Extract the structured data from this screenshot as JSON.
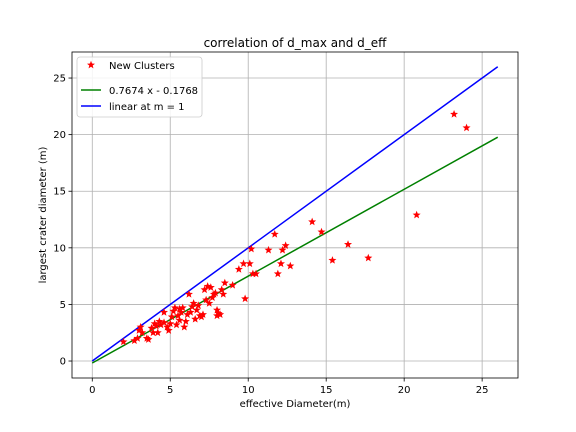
{
  "chart_data": {
    "type": "scatter",
    "title": "correlation of d_max and d_eff",
    "xlabel": "effective Diameter(m)",
    "ylabel": "largest crater diameter (m)",
    "xlim": [
      -1.3,
      27.3
    ],
    "ylim": [
      -1.5,
      27.3
    ],
    "xticks": [
      0,
      5,
      10,
      15,
      20,
      25
    ],
    "yticks": [
      0,
      5,
      10,
      15,
      20,
      25
    ],
    "grid": true,
    "legend_position": "top-left",
    "colors": {
      "scatter": "#ff0000",
      "fit": "#008000",
      "unit": "#0000ff"
    },
    "series": [
      {
        "name": "New Clusters",
        "kind": "scatter",
        "marker": "star",
        "points": [
          [
            2.0,
            1.7
          ],
          [
            2.7,
            1.8
          ],
          [
            2.9,
            2.0
          ],
          [
            3.0,
            2.7
          ],
          [
            3.1,
            3.0
          ],
          [
            3.2,
            2.5
          ],
          [
            3.5,
            2.0
          ],
          [
            3.6,
            1.9
          ],
          [
            3.8,
            2.9
          ],
          [
            3.9,
            2.5
          ],
          [
            4.0,
            3.3
          ],
          [
            4.1,
            3.1
          ],
          [
            4.2,
            2.5
          ],
          [
            4.3,
            3.5
          ],
          [
            4.4,
            3.2
          ],
          [
            4.6,
            3.4
          ],
          [
            4.6,
            4.3
          ],
          [
            4.8,
            3.0
          ],
          [
            4.9,
            2.7
          ],
          [
            5.0,
            3.3
          ],
          [
            5.1,
            3.9
          ],
          [
            5.2,
            4.4
          ],
          [
            5.3,
            4.7
          ],
          [
            5.4,
            3.2
          ],
          [
            5.5,
            4.0
          ],
          [
            5.6,
            4.6
          ],
          [
            5.6,
            3.6
          ],
          [
            5.7,
            4.3
          ],
          [
            5.8,
            4.7
          ],
          [
            5.9,
            3.0
          ],
          [
            6.0,
            3.5
          ],
          [
            6.1,
            4.1
          ],
          [
            6.2,
            5.9
          ],
          [
            6.3,
            4.3
          ],
          [
            6.4,
            4.8
          ],
          [
            6.5,
            5.1
          ],
          [
            6.6,
            3.7
          ],
          [
            6.7,
            4.5
          ],
          [
            6.8,
            4.9
          ],
          [
            6.9,
            4.0
          ],
          [
            7.0,
            3.9
          ],
          [
            7.1,
            4.1
          ],
          [
            7.2,
            6.3
          ],
          [
            7.3,
            5.4
          ],
          [
            7.4,
            6.6
          ],
          [
            7.5,
            5.1
          ],
          [
            7.6,
            6.5
          ],
          [
            7.7,
            5.6
          ],
          [
            7.8,
            5.9
          ],
          [
            7.9,
            6.0
          ],
          [
            8.0,
            4.0
          ],
          [
            8.0,
            4.5
          ],
          [
            8.1,
            4.2
          ],
          [
            8.2,
            4.1
          ],
          [
            8.3,
            6.3
          ],
          [
            8.4,
            5.9
          ],
          [
            8.5,
            6.9
          ],
          [
            9.0,
            6.7
          ],
          [
            9.4,
            8.1
          ],
          [
            9.7,
            8.6
          ],
          [
            9.8,
            5.5
          ],
          [
            10.1,
            8.6
          ],
          [
            10.2,
            9.9
          ],
          [
            10.3,
            7.7
          ],
          [
            10.5,
            7.7
          ],
          [
            11.3,
            9.8
          ],
          [
            11.7,
            11.2
          ],
          [
            11.9,
            7.7
          ],
          [
            12.1,
            8.6
          ],
          [
            12.2,
            9.8
          ],
          [
            12.4,
            10.2
          ],
          [
            12.7,
            8.4
          ],
          [
            14.1,
            12.3
          ],
          [
            14.7,
            11.4
          ],
          [
            15.4,
            8.9
          ],
          [
            16.4,
            10.3
          ],
          [
            17.7,
            9.1
          ],
          [
            20.8,
            12.9
          ],
          [
            23.2,
            21.8
          ],
          [
            24.0,
            20.6
          ]
        ]
      },
      {
        "name": "0.7674 x - 0.1768",
        "kind": "line",
        "slope": 0.7674,
        "intercept": -0.1768,
        "x_range": [
          0,
          26
        ]
      },
      {
        "name": "linear at m = 1",
        "kind": "line",
        "slope": 1,
        "intercept": 0,
        "x_range": [
          0,
          26
        ]
      }
    ]
  }
}
